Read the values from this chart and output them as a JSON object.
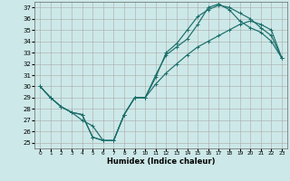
{
  "xlabel": "Humidex (Indice chaleur)",
  "background_color": "#cde8e8",
  "line_color": "#1a6e6a",
  "xlim": [
    -0.5,
    23.5
  ],
  "ylim": [
    24.5,
    37.5
  ],
  "xticks": [
    0,
    1,
    2,
    3,
    4,
    5,
    6,
    7,
    8,
    9,
    10,
    11,
    12,
    13,
    14,
    15,
    16,
    17,
    18,
    19,
    20,
    21,
    22,
    23
  ],
  "yticks": [
    25,
    26,
    27,
    28,
    29,
    30,
    31,
    32,
    33,
    34,
    35,
    36,
    37
  ],
  "curve1_x": [
    0,
    1,
    2,
    3,
    4,
    5,
    6,
    7,
    8,
    9,
    10,
    11,
    12,
    13,
    14,
    15,
    16,
    17,
    18,
    19,
    20,
    21,
    22,
    23
  ],
  "curve1_y": [
    30,
    29,
    28.2,
    27.7,
    27.0,
    26.5,
    25.2,
    25.2,
    27.5,
    29,
    29,
    30.8,
    33,
    33.8,
    35,
    36.2,
    36.8,
    37.2,
    37,
    36.5,
    36,
    35.2,
    34.5,
    32.5
  ],
  "curve2_x": [
    0,
    1,
    2,
    3,
    4,
    5,
    6,
    7,
    8,
    9,
    10,
    11,
    12,
    13,
    14,
    15,
    16,
    17,
    18,
    19,
    20,
    21,
    22,
    23
  ],
  "curve2_y": [
    30,
    29,
    28.2,
    27.7,
    27.5,
    25.5,
    25.2,
    25.2,
    27.5,
    29,
    29,
    31,
    32.8,
    33.5,
    34.2,
    35.5,
    37.0,
    37.3,
    36.8,
    35.8,
    35.2,
    34.8,
    34.0,
    32.5
  ],
  "curve3_x": [
    0,
    1,
    2,
    3,
    4,
    5,
    6,
    7,
    8,
    9,
    10,
    11,
    12,
    13,
    14,
    15,
    16,
    17,
    18,
    19,
    20,
    21,
    22,
    23
  ],
  "curve3_y": [
    30,
    29,
    28.2,
    27.7,
    27.5,
    25.5,
    25.2,
    25.2,
    27.5,
    29,
    29,
    30.2,
    31.2,
    32.0,
    32.8,
    33.5,
    34.0,
    34.5,
    35.0,
    35.5,
    35.8,
    35.5,
    35.0,
    32.5
  ]
}
